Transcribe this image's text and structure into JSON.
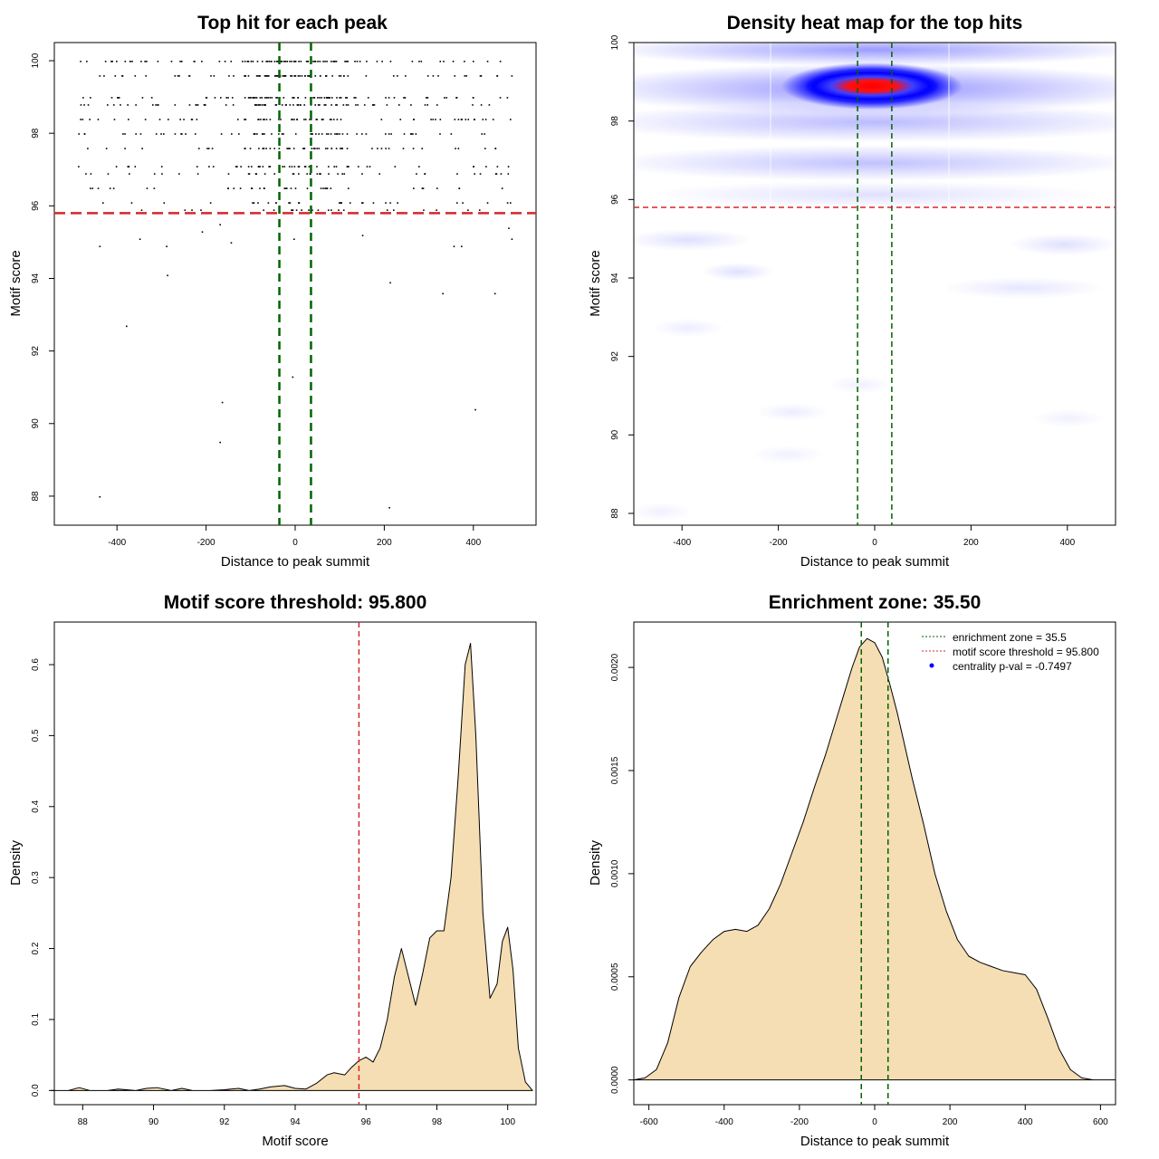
{
  "chart_data": [
    {
      "type": "scatter",
      "title": "Top hit for each peak",
      "xlabel": "Distance to peak summit",
      "ylabel": "Motif score",
      "xlim": [
        -500,
        500
      ],
      "ylim": [
        87.2,
        100.5
      ],
      "xticks": [
        -400,
        -200,
        0,
        200,
        400
      ],
      "yticks": [
        88,
        90,
        92,
        94,
        96,
        98,
        100
      ],
      "vlines": [
        -35.5,
        35.5
      ],
      "hline": 95.8,
      "outliers": [
        {
          "x": -440,
          "y": 88.0
        },
        {
          "x": 210,
          "y": 87.7
        },
        {
          "x": -170,
          "y": 89.5
        },
        {
          "x": -165,
          "y": 90.6
        },
        {
          "x": 403,
          "y": 90.4
        },
        {
          "x": -7,
          "y": 91.3
        },
        {
          "x": -380,
          "y": 92.7
        },
        {
          "x": -288,
          "y": 94.1
        },
        {
          "x": 212,
          "y": 93.9
        },
        {
          "x": 330,
          "y": 93.6
        },
        {
          "x": 447,
          "y": 93.6
        },
        {
          "x": -440,
          "y": 94.9
        },
        {
          "x": -290,
          "y": 94.9
        },
        {
          "x": -145,
          "y": 95.0
        },
        {
          "x": -350,
          "y": 95.1
        },
        {
          "x": 355,
          "y": 94.9
        },
        {
          "x": 372,
          "y": 94.9
        },
        {
          "x": 485,
          "y": 95.1
        },
        {
          "x": -4,
          "y": 95.1
        },
        {
          "x": -170,
          "y": 95.5
        },
        {
          "x": -210,
          "y": 95.3
        },
        {
          "x": 478,
          "y": 95.4
        },
        {
          "x": 150,
          "y": 95.2
        }
      ],
      "rows": [
        100.0,
        99.6,
        99.0,
        98.8,
        98.4,
        98.0,
        97.6,
        97.1,
        96.9,
        96.5,
        96.1,
        95.9
      ]
    },
    {
      "type": "heatmap",
      "title": "Density heat map for the top hits",
      "xlabel": "Distance to peak summit",
      "ylabel": "Motif score",
      "xlim": [
        -500,
        500
      ],
      "ylim": [
        87.7,
        100.0
      ],
      "xticks": [
        -400,
        -200,
        0,
        200,
        400
      ],
      "yticks": [
        88,
        90,
        92,
        94,
        96,
        98,
        100
      ],
      "vlines": [
        -35.5,
        35.5
      ],
      "hline": 95.8,
      "colors": [
        "#ffffff",
        "#0000ff",
        "#ff0000"
      ],
      "peak": {
        "x": -5,
        "y": 98.9
      }
    },
    {
      "type": "area",
      "title": "Motif score threshold: 95.800",
      "xlabel": "Motif score",
      "ylabel": "Density",
      "xlim": [
        87.2,
        100.8
      ],
      "ylim": [
        -0.02,
        0.66
      ],
      "xticks": [
        88,
        90,
        92,
        94,
        96,
        98,
        100
      ],
      "yticks": [
        0.0,
        0.1,
        0.2,
        0.3,
        0.4,
        0.5,
        0.6
      ],
      "ytick_labels": [
        "0.0",
        "0.1",
        "0.2",
        "0.3",
        "0.4",
        "0.5",
        "0.6"
      ],
      "vline": 95.8,
      "fill": "#f5deb3",
      "x": [
        87.1,
        87.6,
        87.9,
        88.2,
        88.7,
        89.0,
        89.5,
        89.8,
        90.1,
        90.5,
        90.8,
        91.1,
        91.6,
        92.0,
        92.4,
        92.7,
        93.0,
        93.3,
        93.7,
        94.0,
        94.3,
        94.6,
        94.9,
        95.1,
        95.4,
        95.6,
        95.8,
        96.0,
        96.2,
        96.4,
        96.6,
        96.8,
        97.0,
        97.2,
        97.4,
        97.6,
        97.8,
        98.0,
        98.2,
        98.4,
        98.6,
        98.8,
        98.95,
        99.1,
        99.3,
        99.5,
        99.7,
        99.85,
        100.0,
        100.15,
        100.3,
        100.5,
        100.7
      ],
      "y": [
        0.0,
        0.0,
        0.004,
        0.0,
        0.0,
        0.002,
        0.0,
        0.003,
        0.004,
        0.0,
        0.003,
        0.0,
        0.0,
        0.001,
        0.003,
        0.0,
        0.002,
        0.005,
        0.007,
        0.003,
        0.002,
        0.01,
        0.022,
        0.025,
        0.022,
        0.033,
        0.042,
        0.047,
        0.04,
        0.06,
        0.1,
        0.16,
        0.2,
        0.16,
        0.12,
        0.165,
        0.215,
        0.225,
        0.225,
        0.3,
        0.44,
        0.6,
        0.63,
        0.5,
        0.25,
        0.13,
        0.15,
        0.21,
        0.23,
        0.17,
        0.06,
        0.012,
        0.0
      ]
    },
    {
      "type": "area",
      "title": "Enrichment zone: 35.50",
      "xlabel": "Distance to peak summit",
      "ylabel": "Density",
      "xlim": [
        -640,
        640
      ],
      "ylim": [
        -0.00012,
        0.00222
      ],
      "xticks": [
        -600,
        -400,
        -200,
        0,
        200,
        400,
        600
      ],
      "yticks": [
        0.0,
        0.0005,
        0.001,
        0.0015,
        0.002
      ],
      "ytick_labels": [
        "0.0000",
        "0.0005",
        "0.0010",
        "0.0015",
        "0.0020"
      ],
      "vlines": [
        -35.5,
        35.5
      ],
      "fill": "#f5deb3",
      "x": [
        -640,
        -610,
        -580,
        -550,
        -520,
        -490,
        -460,
        -430,
        -400,
        -370,
        -340,
        -310,
        -280,
        -250,
        -220,
        -190,
        -160,
        -130,
        -100,
        -80,
        -60,
        -40,
        -20,
        0,
        20,
        40,
        60,
        80,
        100,
        130,
        160,
        190,
        220,
        250,
        280,
        310,
        340,
        370,
        400,
        430,
        460,
        490,
        520,
        550,
        580,
        610,
        640
      ],
      "y": [
        0.0,
        1e-05,
        5e-05,
        0.00018,
        0.0004,
        0.00055,
        0.00062,
        0.00068,
        0.00072,
        0.00073,
        0.00072,
        0.00075,
        0.00083,
        0.00095,
        0.0011,
        0.00125,
        0.00142,
        0.00158,
        0.00176,
        0.00188,
        0.002,
        0.0021,
        0.00214,
        0.00212,
        0.00205,
        0.00192,
        0.00178,
        0.00162,
        0.00146,
        0.00124,
        0.001,
        0.00082,
        0.00068,
        0.0006,
        0.00057,
        0.00055,
        0.00053,
        0.00052,
        0.00051,
        0.00044,
        0.0003,
        0.00015,
        5e-05,
        1e-05,
        0.0,
        0.0,
        0.0
      ],
      "legend": {
        "placement": "top-right",
        "items": [
          {
            "label": "enrichment zone = 35.5",
            "color": "#006400",
            "symbol": "dotted-line"
          },
          {
            "label": "motif score threshold = 95.800",
            "color": "#d62728",
            "symbol": "dotted-line"
          },
          {
            "label": "centrality p-val = -0.7497",
            "color": "#0000ff",
            "symbol": "point"
          }
        ]
      }
    }
  ]
}
